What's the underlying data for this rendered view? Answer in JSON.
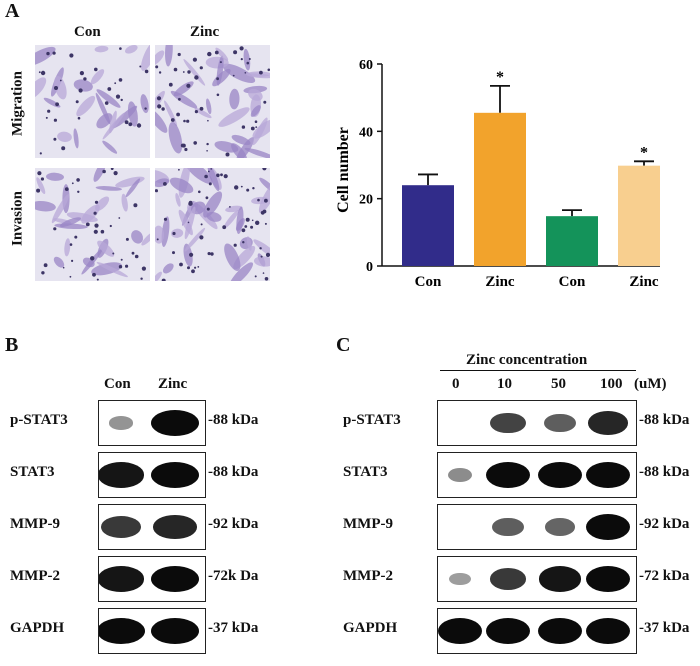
{
  "panels": {
    "a": "A",
    "b": "B",
    "c": "C"
  },
  "panel_a": {
    "col_labels": [
      "Con",
      "Zinc"
    ],
    "row_labels": [
      "Migration",
      "Invasion"
    ]
  },
  "chart_data": {
    "type": "bar",
    "categories": [
      "Con",
      "Zinc",
      "Con",
      "Zinc"
    ],
    "values": [
      24,
      45.5,
      14.8,
      29.8
    ],
    "errors": [
      3.2,
      8,
      1.8,
      1.3
    ],
    "significance": [
      "",
      "*",
      "",
      "*"
    ],
    "colors": [
      "#312c8a",
      "#f2a32c",
      "#14935a",
      "#f8cf8f"
    ],
    "ylabel": "Cell number",
    "ylim": [
      0,
      60
    ],
    "yticks": [
      "0",
      "20",
      "40",
      "60"
    ],
    "grid": false
  },
  "panel_b": {
    "col_labels": [
      "Con",
      "Zinc"
    ],
    "rows": [
      {
        "name": "p-STAT3",
        "mw": "-88 kDa",
        "intensity": [
          0.25,
          1.0
        ]
      },
      {
        "name": "STAT3",
        "mw": "-88 kDa",
        "intensity": [
          0.95,
          1.0
        ]
      },
      {
        "name": "MMP-9",
        "mw": "-92 kDa",
        "intensity": [
          0.75,
          0.85
        ]
      },
      {
        "name": "MMP-2",
        "mw": "-72k Da",
        "intensity": [
          0.95,
          1.0
        ]
      },
      {
        "name": "GAPDH",
        "mw": "-37 kDa",
        "intensity": [
          1.0,
          1.0
        ]
      }
    ]
  },
  "panel_c": {
    "header": "Zinc concentration",
    "concentrations": [
      "0",
      "10",
      "50",
      "100"
    ],
    "unit": "(uM)",
    "rows": [
      {
        "name": "p-STAT3",
        "mw": "-88 kDa",
        "intensity": [
          0.0,
          0.7,
          0.55,
          0.85
        ]
      },
      {
        "name": "STAT3",
        "mw": "-88 kDa",
        "intensity": [
          0.3,
          1.0,
          1.0,
          1.0
        ]
      },
      {
        "name": "MMP-9",
        "mw": "-92 kDa",
        "intensity": [
          0.0,
          0.55,
          0.5,
          1.0
        ]
      },
      {
        "name": "MMP-2",
        "mw": "-72 kDa",
        "intensity": [
          0.2,
          0.75,
          0.95,
          1.0
        ]
      },
      {
        "name": "GAPDH",
        "mw": "-37 kDa",
        "intensity": [
          1.0,
          1.0,
          1.0,
          1.0
        ]
      }
    ]
  }
}
